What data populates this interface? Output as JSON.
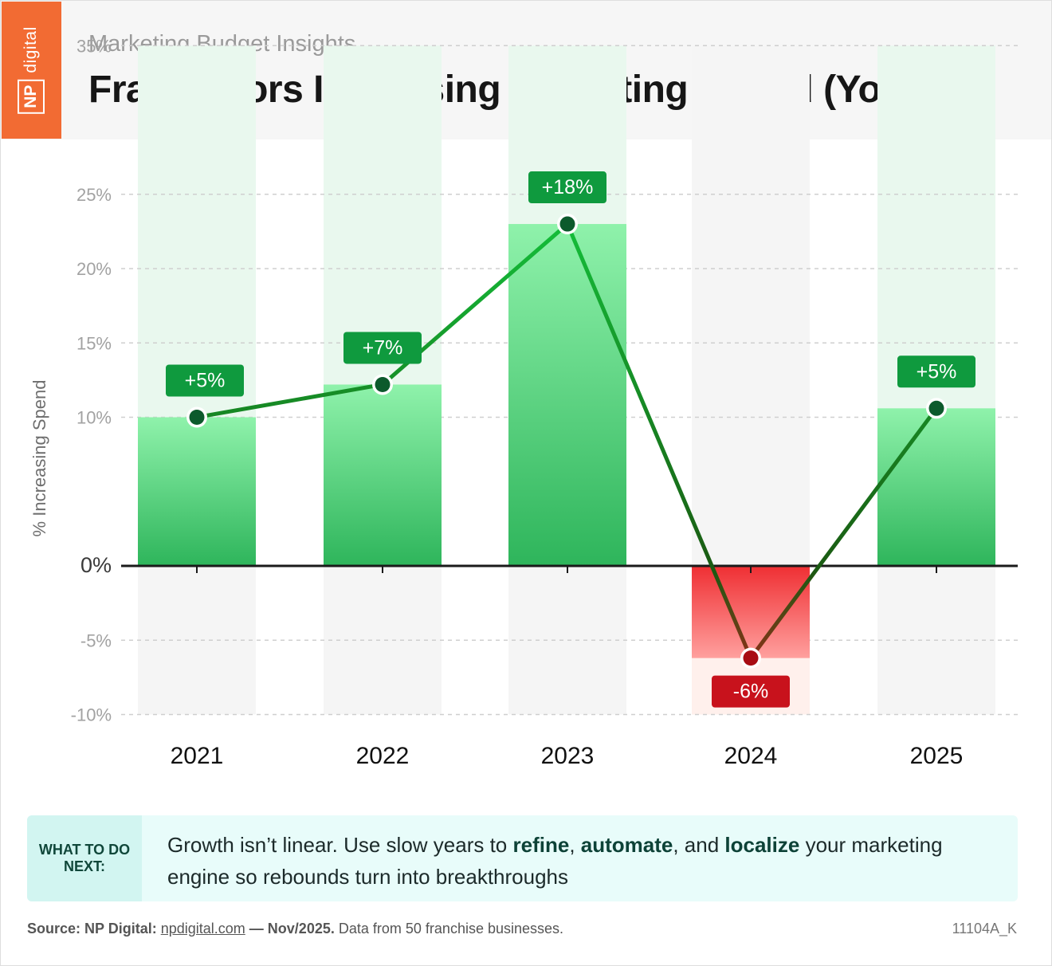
{
  "header": {
    "logo_np": "NP",
    "logo_digital": "digital",
    "subtitle": "Marketing Budget Insights",
    "title": "Franchisors Increasing Marketing Spend (YoY)"
  },
  "chart_data": {
    "type": "bar",
    "title": "Franchisors Increasing Marketing Spend (YoY)",
    "ylabel": "% Increasing Spend",
    "xlabel": "",
    "ylim": [
      -10,
      35
    ],
    "yticks": [
      35,
      25,
      20,
      15,
      10,
      0,
      -5,
      -10
    ],
    "ytick_labels": [
      "35%",
      "25%",
      "20%",
      "15%",
      "10%",
      "0%",
      "-5%",
      "-10%"
    ],
    "categories": [
      "2021",
      "2022",
      "2023",
      "2024",
      "2025"
    ],
    "values": [
      10,
      12.2,
      23,
      -6.2,
      10.6
    ],
    "change_labels": [
      "+5%",
      "+7%",
      "+18%",
      "-6%",
      "+5%"
    ],
    "grid": true,
    "colors": {
      "positive": "#0f9a3e",
      "negative": "#c8121c",
      "positive_bar": "#4fd07a",
      "negative_bar": "#f04848"
    }
  },
  "callout": {
    "tag": "WHAT TO DO NEXT:",
    "text_1": "Growth isn’t linear. Use slow years to ",
    "bold_1": "refine",
    "text_2": ", ",
    "bold_2": "automate",
    "text_3": ", and ",
    "bold_3": "localize",
    "text_4": " your marketing engine so rebounds turn into breakthroughs"
  },
  "footer": {
    "source_label": "Source: NP Digital:",
    "link": "npdigital.com",
    "date": "— Nov/2025.",
    "note": "Data from 50 franchise businesses.",
    "code": "11104A_K"
  }
}
